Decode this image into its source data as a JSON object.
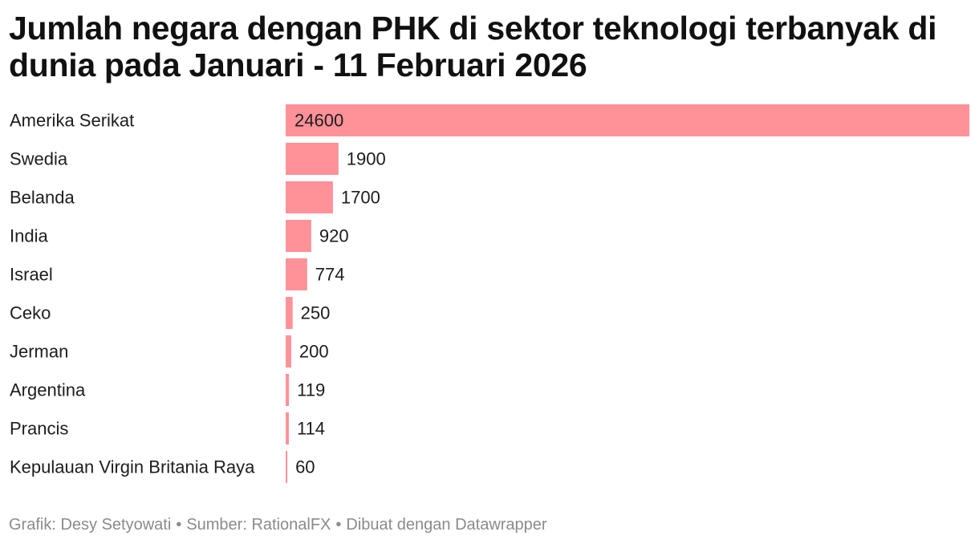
{
  "title": "Jumlah negara dengan PHK di sektor teknologi terbanyak di dunia pada Januari - 11 Februari 2026",
  "footer": {
    "grafik": "Grafik: Desy Setyowati",
    "sumber": "Sumber: RationalFX",
    "dibuat": "Dibuat dengan Datawrapper",
    "separator": "•"
  },
  "colors": {
    "bar": "#ff9199",
    "text": "#1d1d1d",
    "footer": "#8b8b8b"
  },
  "chart_data": {
    "type": "bar",
    "orientation": "horizontal",
    "title": "Jumlah negara dengan PHK di sektor teknologi terbanyak di dunia pada Januari - 11 Februari 2026",
    "categories": [
      "Amerika Serikat",
      "Swedia",
      "Belanda",
      "India",
      "Israel",
      "Ceko",
      "Jerman",
      "Argentina",
      "Prancis",
      "Kepulauan Virgin Britania Raya"
    ],
    "values": [
      24600,
      1900,
      1700,
      920,
      774,
      250,
      200,
      119,
      114,
      60
    ],
    "xlim": [
      0,
      24600
    ],
    "grid": false,
    "legend": "none",
    "value_labels": true
  }
}
